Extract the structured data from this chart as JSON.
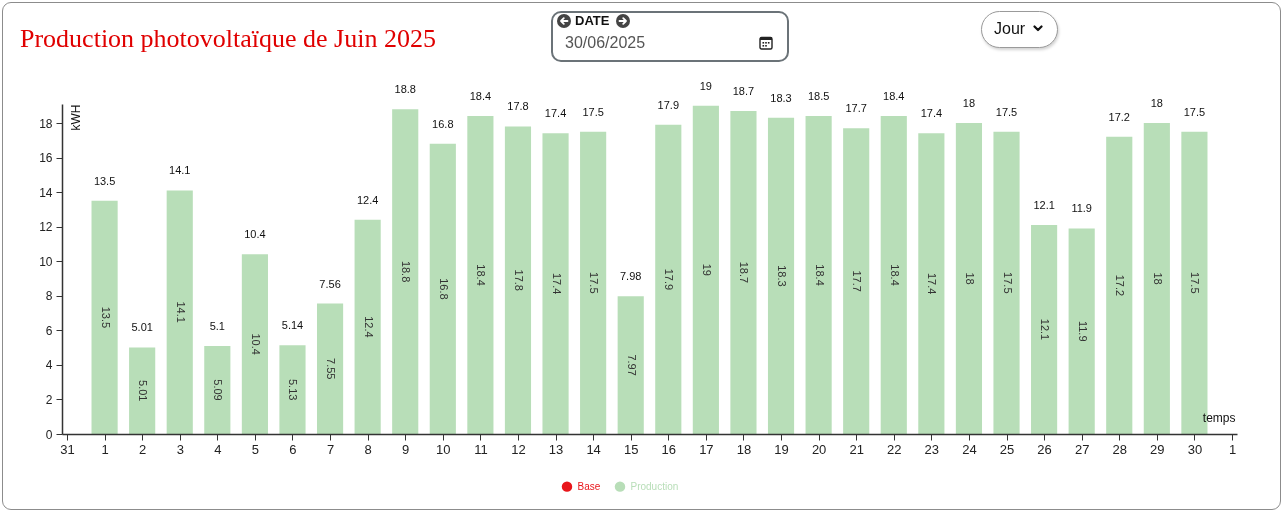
{
  "chart_data": {
    "type": "bar",
    "title": "Production photovoltaïque de Juin 2025",
    "xlabel": "temps",
    "ylabel": "kWH",
    "x": [
      "2025-06-01",
      "2025-06-02",
      "2025-06-03",
      "2025-06-04",
      "2025-06-05",
      "2025-06-06",
      "2025-06-07",
      "2025-06-08",
      "2025-06-09",
      "2025-06-10",
      "2025-06-11",
      "2025-06-12",
      "2025-06-13",
      "2025-06-14",
      "2025-06-15",
      "2025-06-16",
      "2025-06-17",
      "2025-06-18",
      "2025-06-19",
      "2025-06-20",
      "2025-06-21",
      "2025-06-22",
      "2025-06-23",
      "2025-06-24",
      "2025-06-25",
      "2025-06-26",
      "2025-06-27",
      "2025-06-28",
      "2025-06-29",
      "2025-06-30"
    ],
    "xlim": [
      "2025-05-31",
      "2025-07-01"
    ],
    "xticks": [
      {
        "value": "2025-05-31",
        "label": "31"
      },
      {
        "value": "2025-06-01",
        "label": "1"
      },
      {
        "value": "2025-06-02",
        "label": "2"
      },
      {
        "value": "2025-06-03",
        "label": "3"
      },
      {
        "value": "2025-06-04",
        "label": "4"
      },
      {
        "value": "2025-06-05",
        "label": "5"
      },
      {
        "value": "2025-06-06",
        "label": "6"
      },
      {
        "value": "2025-06-07",
        "label": "7"
      },
      {
        "value": "2025-06-08",
        "label": "8"
      },
      {
        "value": "2025-06-09",
        "label": "9"
      },
      {
        "value": "2025-06-10",
        "label": "10"
      },
      {
        "value": "2025-06-11",
        "label": "11"
      },
      {
        "value": "2025-06-12",
        "label": "12"
      },
      {
        "value": "2025-06-13",
        "label": "13"
      },
      {
        "value": "2025-06-14",
        "label": "14"
      },
      {
        "value": "2025-06-15",
        "label": "15"
      },
      {
        "value": "2025-06-16",
        "label": "16"
      },
      {
        "value": "2025-06-17",
        "label": "17"
      },
      {
        "value": "2025-06-18",
        "label": "18"
      },
      {
        "value": "2025-06-19",
        "label": "19"
      },
      {
        "value": "2025-06-20",
        "label": "20"
      },
      {
        "value": "2025-06-21",
        "label": "21"
      },
      {
        "value": "2025-06-22",
        "label": "22"
      },
      {
        "value": "2025-06-23",
        "label": "23"
      },
      {
        "value": "2025-06-24",
        "label": "24"
      },
      {
        "value": "2025-06-25",
        "label": "25"
      },
      {
        "value": "2025-06-26",
        "label": "26"
      },
      {
        "value": "2025-06-27",
        "label": "27"
      },
      {
        "value": "2025-06-28",
        "label": "28"
      },
      {
        "value": "2025-06-29",
        "label": "29"
      },
      {
        "value": "2025-06-30",
        "label": "30"
      },
      {
        "value": "2025-07-01",
        "label": "1"
      }
    ],
    "ylim": [
      0,
      19.1
    ],
    "yticks": [
      0,
      2,
      4,
      6,
      8,
      10,
      12,
      14,
      16,
      18
    ],
    "stacked": true,
    "series": [
      {
        "name": "Base",
        "color": "#e8161b",
        "values": [
          null,
          null,
          null,
          null,
          null,
          null,
          null,
          null,
          null,
          null,
          null,
          null,
          null,
          null,
          null,
          null,
          null,
          null,
          null,
          null,
          null,
          null,
          null,
          null,
          null,
          null,
          null,
          null,
          null,
          null
        ]
      },
      {
        "name": "Production",
        "color": "#b8deb8",
        "values": [
          13.5,
          5.01,
          14.1,
          5.09,
          10.4,
          5.13,
          7.55,
          12.4,
          18.8,
          16.8,
          18.4,
          17.8,
          17.4,
          17.5,
          7.97,
          17.9,
          19,
          18.7,
          18.3,
          18.4,
          17.7,
          18.4,
          17.4,
          18,
          17.5,
          12.1,
          11.9,
          17.2,
          18,
          17.5
        ]
      }
    ],
    "data_labels": true,
    "totals": [
      "13.5",
      "5.01",
      "14.1",
      "5.1",
      "10.4",
      "5.14",
      "7.56",
      "12.4",
      "18.8",
      "16.8",
      "18.4",
      "17.8",
      "17.4",
      "17.5",
      "7.98",
      "17.9",
      "19",
      "18.7",
      "18.3",
      "18.5",
      "17.7",
      "18.4",
      "17.4",
      "18",
      "17.5",
      "12.1",
      "11.9",
      "17.2",
      "18",
      "17.5"
    ],
    "legend": "bottom",
    "annotations": [
      "DATE",
      "30/06/2025",
      "Jour"
    ]
  }
}
